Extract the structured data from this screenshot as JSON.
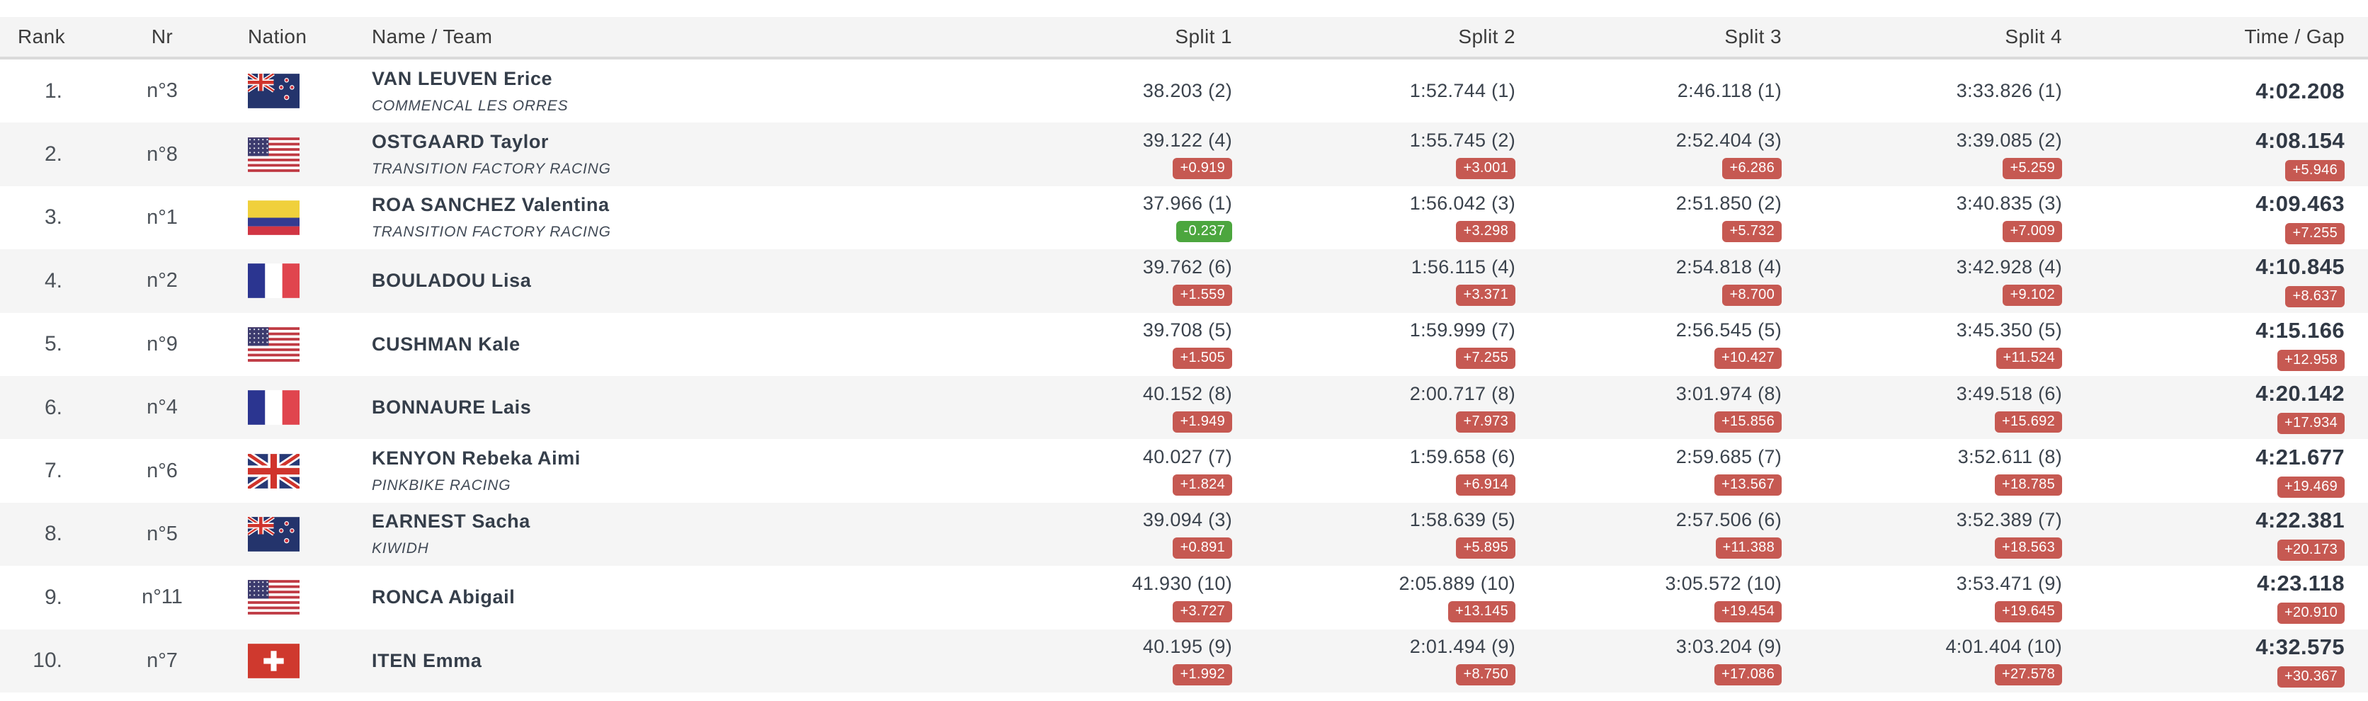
{
  "colors": {
    "gap_slower": "#c65952",
    "gap_faster": "#4ca63e",
    "row_alt": "#f5f5f5",
    "header_bg": "#f4f4f4",
    "header_text": "#3b3b3b"
  },
  "header": {
    "rank": "Rank",
    "nr": "Nr",
    "nation": "Nation",
    "name": "Name / Team",
    "split1": "Split 1",
    "split2": "Split 2",
    "split3": "Split 3",
    "split4": "Split 4",
    "time": "Time / Gap"
  },
  "rows": [
    {
      "rank": "1.",
      "nr": "n°3",
      "nation": "nzl",
      "name": "VAN LEUVEN Erice",
      "team": "COMMENCAL LES ORRES",
      "splits": [
        {
          "value": "38.203 (2)",
          "gap": null,
          "gap_type": null
        },
        {
          "value": "1:52.744 (1)",
          "gap": null,
          "gap_type": null
        },
        {
          "value": "2:46.118 (1)",
          "gap": null,
          "gap_type": null
        },
        {
          "value": "3:33.826 (1)",
          "gap": null,
          "gap_type": null
        }
      ],
      "time": {
        "value": "4:02.208",
        "gap": null,
        "gap_type": null
      }
    },
    {
      "rank": "2.",
      "nr": "n°8",
      "nation": "usa",
      "name": "OSTGAARD Taylor",
      "team": "TRANSITION FACTORY RACING",
      "splits": [
        {
          "value": "39.122 (4)",
          "gap": "+0.919",
          "gap_type": "slower"
        },
        {
          "value": "1:55.745 (2)",
          "gap": "+3.001",
          "gap_type": "slower"
        },
        {
          "value": "2:52.404 (3)",
          "gap": "+6.286",
          "gap_type": "slower"
        },
        {
          "value": "3:39.085 (2)",
          "gap": "+5.259",
          "gap_type": "slower"
        }
      ],
      "time": {
        "value": "4:08.154",
        "gap": "+5.946",
        "gap_type": "slower"
      }
    },
    {
      "rank": "3.",
      "nr": "n°1",
      "nation": "col",
      "name": "ROA SANCHEZ Valentina",
      "team": "TRANSITION FACTORY RACING",
      "splits": [
        {
          "value": "37.966 (1)",
          "gap": "-0.237",
          "gap_type": "faster"
        },
        {
          "value": "1:56.042 (3)",
          "gap": "+3.298",
          "gap_type": "slower"
        },
        {
          "value": "2:51.850 (2)",
          "gap": "+5.732",
          "gap_type": "slower"
        },
        {
          "value": "3:40.835 (3)",
          "gap": "+7.009",
          "gap_type": "slower"
        }
      ],
      "time": {
        "value": "4:09.463",
        "gap": "+7.255",
        "gap_type": "slower"
      }
    },
    {
      "rank": "4.",
      "nr": "n°2",
      "nation": "fra",
      "name": "BOULADOU Lisa",
      "team": null,
      "splits": [
        {
          "value": "39.762 (6)",
          "gap": "+1.559",
          "gap_type": "slower"
        },
        {
          "value": "1:56.115 (4)",
          "gap": "+3.371",
          "gap_type": "slower"
        },
        {
          "value": "2:54.818 (4)",
          "gap": "+8.700",
          "gap_type": "slower"
        },
        {
          "value": "3:42.928 (4)",
          "gap": "+9.102",
          "gap_type": "slower"
        }
      ],
      "time": {
        "value": "4:10.845",
        "gap": "+8.637",
        "gap_type": "slower"
      }
    },
    {
      "rank": "5.",
      "nr": "n°9",
      "nation": "usa",
      "name": "CUSHMAN Kale",
      "team": null,
      "splits": [
        {
          "value": "39.708 (5)",
          "gap": "+1.505",
          "gap_type": "slower"
        },
        {
          "value": "1:59.999 (7)",
          "gap": "+7.255",
          "gap_type": "slower"
        },
        {
          "value": "2:56.545 (5)",
          "gap": "+10.427",
          "gap_type": "slower"
        },
        {
          "value": "3:45.350 (5)",
          "gap": "+11.524",
          "gap_type": "slower"
        }
      ],
      "time": {
        "value": "4:15.166",
        "gap": "+12.958",
        "gap_type": "slower"
      }
    },
    {
      "rank": "6.",
      "nr": "n°4",
      "nation": "fra",
      "name": "BONNAURE Lais",
      "team": null,
      "splits": [
        {
          "value": "40.152 (8)",
          "gap": "+1.949",
          "gap_type": "slower"
        },
        {
          "value": "2:00.717 (8)",
          "gap": "+7.973",
          "gap_type": "slower"
        },
        {
          "value": "3:01.974 (8)",
          "gap": "+15.856",
          "gap_type": "slower"
        },
        {
          "value": "3:49.518 (6)",
          "gap": "+15.692",
          "gap_type": "slower"
        }
      ],
      "time": {
        "value": "4:20.142",
        "gap": "+17.934",
        "gap_type": "slower"
      }
    },
    {
      "rank": "7.",
      "nr": "n°6",
      "nation": "gbr",
      "name": "KENYON Rebeka Aimi",
      "team": "PINKBIKE RACING",
      "splits": [
        {
          "value": "40.027 (7)",
          "gap": "+1.824",
          "gap_type": "slower"
        },
        {
          "value": "1:59.658 (6)",
          "gap": "+6.914",
          "gap_type": "slower"
        },
        {
          "value": "2:59.685 (7)",
          "gap": "+13.567",
          "gap_type": "slower"
        },
        {
          "value": "3:52.611 (8)",
          "gap": "+18.785",
          "gap_type": "slower"
        }
      ],
      "time": {
        "value": "4:21.677",
        "gap": "+19.469",
        "gap_type": "slower"
      }
    },
    {
      "rank": "8.",
      "nr": "n°5",
      "nation": "nzl",
      "name": "EARNEST Sacha",
      "team": "KIWIDH",
      "splits": [
        {
          "value": "39.094 (3)",
          "gap": "+0.891",
          "gap_type": "slower"
        },
        {
          "value": "1:58.639 (5)",
          "gap": "+5.895",
          "gap_type": "slower"
        },
        {
          "value": "2:57.506 (6)",
          "gap": "+11.388",
          "gap_type": "slower"
        },
        {
          "value": "3:52.389 (7)",
          "gap": "+18.563",
          "gap_type": "slower"
        }
      ],
      "time": {
        "value": "4:22.381",
        "gap": "+20.173",
        "gap_type": "slower"
      }
    },
    {
      "rank": "9.",
      "nr": "n°11",
      "nation": "usa",
      "name": "RONCA Abigail",
      "team": null,
      "splits": [
        {
          "value": "41.930 (10)",
          "gap": "+3.727",
          "gap_type": "slower"
        },
        {
          "value": "2:05.889 (10)",
          "gap": "+13.145",
          "gap_type": "slower"
        },
        {
          "value": "3:05.572 (10)",
          "gap": "+19.454",
          "gap_type": "slower"
        },
        {
          "value": "3:53.471 (9)",
          "gap": "+19.645",
          "gap_type": "slower"
        }
      ],
      "time": {
        "value": "4:23.118",
        "gap": "+20.910",
        "gap_type": "slower"
      }
    },
    {
      "rank": "10.",
      "nr": "n°7",
      "nation": "sui",
      "name": "ITEN Emma",
      "team": null,
      "splits": [
        {
          "value": "40.195 (9)",
          "gap": "+1.992",
          "gap_type": "slower"
        },
        {
          "value": "2:01.494 (9)",
          "gap": "+8.750",
          "gap_type": "slower"
        },
        {
          "value": "3:03.204 (9)",
          "gap": "+17.086",
          "gap_type": "slower"
        },
        {
          "value": "4:01.404 (10)",
          "gap": "+27.578",
          "gap_type": "slower"
        }
      ],
      "time": {
        "value": "4:32.575",
        "gap": "+30.367",
        "gap_type": "slower"
      }
    }
  ]
}
